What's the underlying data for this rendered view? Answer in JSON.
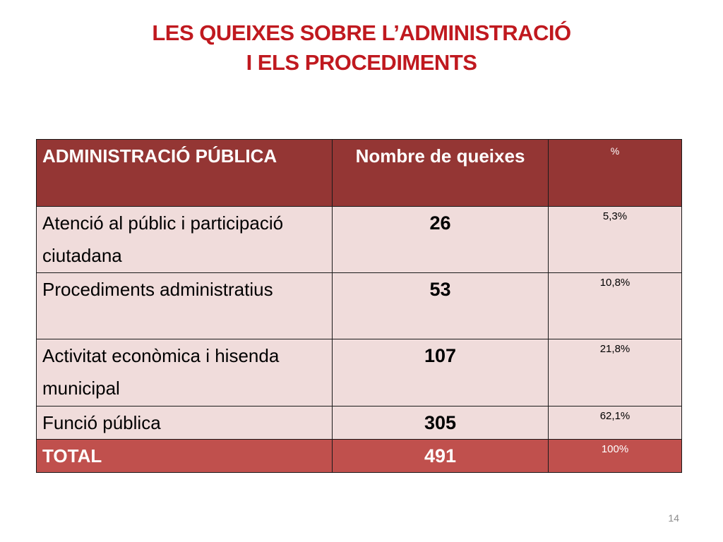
{
  "slide": {
    "title_line1": "LES QUEIXES SOBRE L’ADMINISTRACIÓ",
    "title_line2": "I ELS PROCEDIMENTS",
    "page_number": "14"
  },
  "table": {
    "headers": {
      "col1": "ADMINISTRACIÓ PÚBLICA",
      "col2": "Nombre de queixes",
      "col3": "%"
    },
    "rows": [
      {
        "label": "Atenció al públic i participació ciutadana",
        "count": "26",
        "percent": "5,3%"
      },
      {
        "label": "Procediments administratius",
        "count": "53",
        "percent": "10,8%"
      },
      {
        "label": "Activitat econòmica i hisenda municipal",
        "count": "107",
        "percent": "21,8%"
      },
      {
        "label": "Funció pública",
        "count": "305",
        "percent": "62,1%"
      }
    ],
    "total": {
      "label": "TOTAL",
      "count": "491",
      "percent": "100%"
    }
  },
  "colors": {
    "title": "#c0191f",
    "header_bg": "#943634",
    "row_bg": "#f0dcdb",
    "total_bg": "#c0504d"
  }
}
